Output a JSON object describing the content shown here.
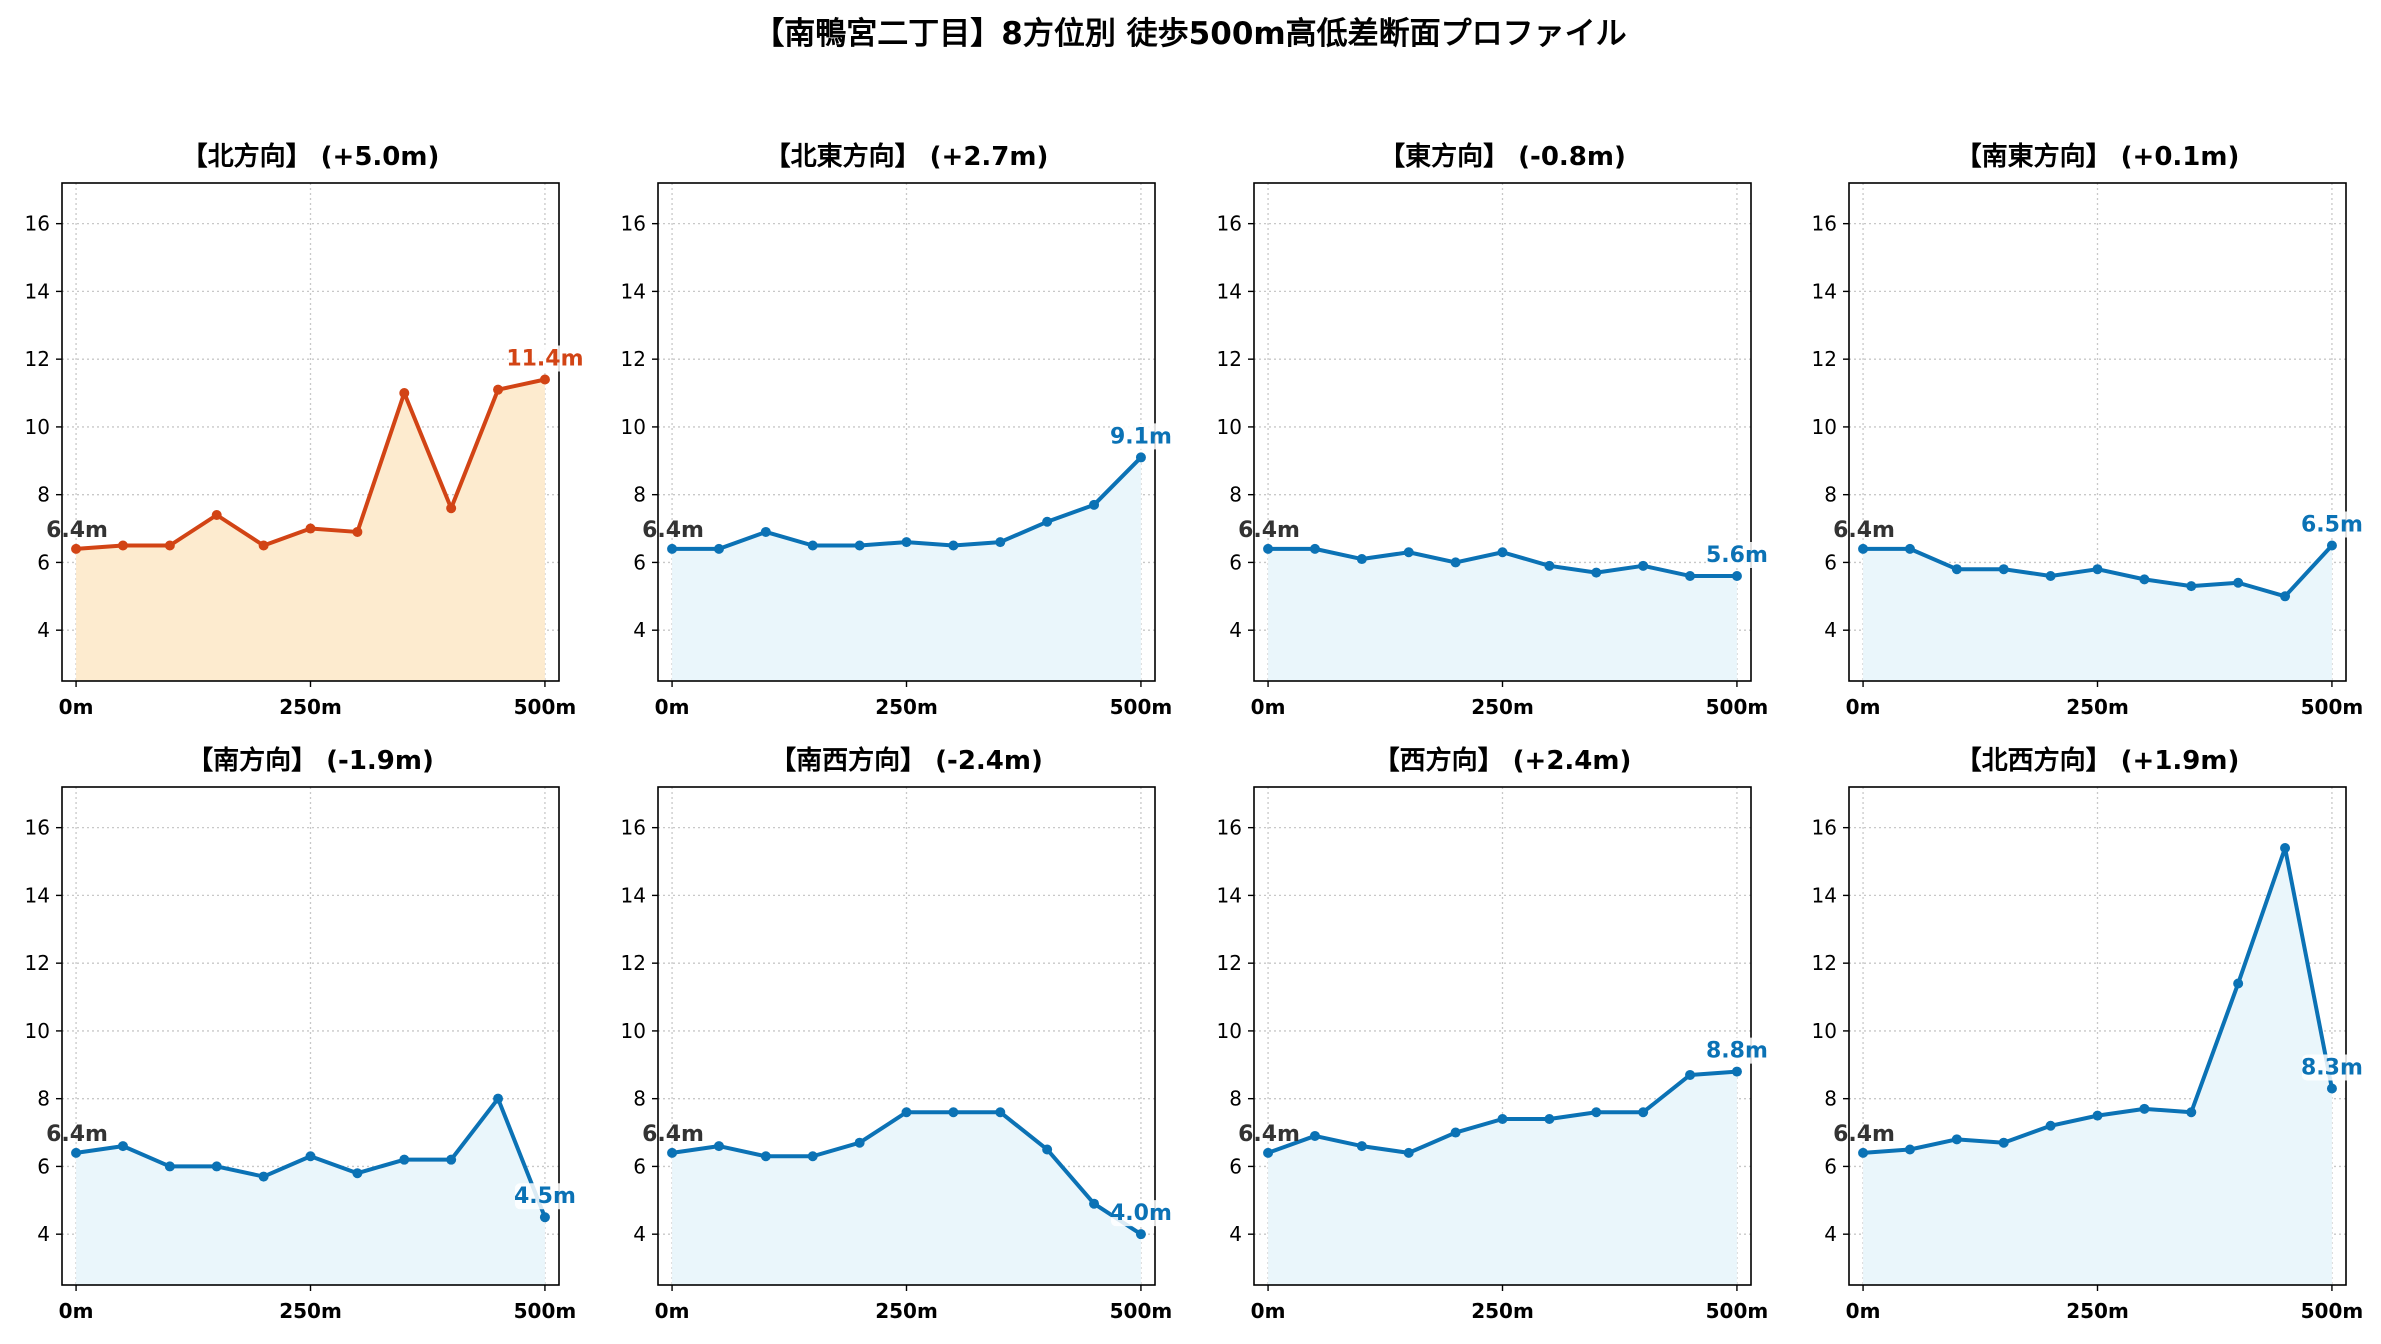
{
  "title": "【南鴨宮二丁目】8方位別 徒歩500m高低差断面プロファイル",
  "colors": {
    "up_line": "#d24415",
    "up_fill": "#fdebcf",
    "normal_line": "#0b72b5",
    "normal_fill": "#eaf6fb",
    "start_label": "#333333",
    "grid": "#c8c8c8"
  },
  "chart_data": [
    {
      "type": "area",
      "title": "【北方向】 (+5.0m)",
      "x": [
        0,
        50,
        100,
        150,
        200,
        250,
        300,
        350,
        400,
        450,
        500
      ],
      "values": [
        6.4,
        6.5,
        6.5,
        7.4,
        6.5,
        7.0,
        6.9,
        11.0,
        7.6,
        11.1,
        11.4
      ],
      "start_label": "6.4m",
      "end_label": "11.4m",
      "highlight": true,
      "ylim": [
        2.5,
        17.2
      ],
      "xlim": [
        -15,
        515
      ],
      "yticks": [
        4,
        6,
        8,
        10,
        12,
        14,
        16
      ],
      "xticks": [
        0,
        250,
        500
      ],
      "xtick_labels": [
        "0m",
        "250m",
        "500m"
      ],
      "grid": true
    },
    {
      "type": "area",
      "title": "【北東方向】 (+2.7m)",
      "x": [
        0,
        50,
        100,
        150,
        200,
        250,
        300,
        350,
        400,
        450,
        500
      ],
      "values": [
        6.4,
        6.4,
        6.9,
        6.5,
        6.5,
        6.6,
        6.5,
        6.6,
        7.2,
        7.7,
        9.1
      ],
      "start_label": "6.4m",
      "end_label": "9.1m",
      "highlight": false,
      "ylim": [
        2.5,
        17.2
      ],
      "xlim": [
        -15,
        515
      ],
      "yticks": [
        4,
        6,
        8,
        10,
        12,
        14,
        16
      ],
      "xticks": [
        0,
        250,
        500
      ],
      "xtick_labels": [
        "0m",
        "250m",
        "500m"
      ],
      "grid": true
    },
    {
      "type": "area",
      "title": "【東方向】 (-0.8m)",
      "x": [
        0,
        50,
        100,
        150,
        200,
        250,
        300,
        350,
        400,
        450,
        500
      ],
      "values": [
        6.4,
        6.4,
        6.1,
        6.3,
        6.0,
        6.3,
        5.9,
        5.7,
        5.9,
        5.6,
        5.6
      ],
      "start_label": "6.4m",
      "end_label": "5.6m",
      "highlight": false,
      "ylim": [
        2.5,
        17.2
      ],
      "xlim": [
        -15,
        515
      ],
      "yticks": [
        4,
        6,
        8,
        10,
        12,
        14,
        16
      ],
      "xticks": [
        0,
        250,
        500
      ],
      "xtick_labels": [
        "0m",
        "250m",
        "500m"
      ],
      "grid": true
    },
    {
      "type": "area",
      "title": "【南東方向】 (+0.1m)",
      "x": [
        0,
        50,
        100,
        150,
        200,
        250,
        300,
        350,
        400,
        450,
        500
      ],
      "values": [
        6.4,
        6.4,
        5.8,
        5.8,
        5.6,
        5.8,
        5.5,
        5.3,
        5.4,
        5.0,
        6.5
      ],
      "start_label": "6.4m",
      "end_label": "6.5m",
      "highlight": false,
      "ylim": [
        2.5,
        17.2
      ],
      "xlim": [
        -15,
        515
      ],
      "yticks": [
        4,
        6,
        8,
        10,
        12,
        14,
        16
      ],
      "xticks": [
        0,
        250,
        500
      ],
      "xtick_labels": [
        "0m",
        "250m",
        "500m"
      ],
      "grid": true
    },
    {
      "type": "area",
      "title": "【南方向】 (-1.9m)",
      "x": [
        0,
        50,
        100,
        150,
        200,
        250,
        300,
        350,
        400,
        450,
        500
      ],
      "values": [
        6.4,
        6.6,
        6.0,
        6.0,
        5.7,
        6.3,
        5.8,
        6.2,
        6.2,
        8.0,
        4.5
      ],
      "start_label": "6.4m",
      "end_label": "4.5m",
      "highlight": false,
      "ylim": [
        2.5,
        17.2
      ],
      "xlim": [
        -15,
        515
      ],
      "yticks": [
        4,
        6,
        8,
        10,
        12,
        14,
        16
      ],
      "xticks": [
        0,
        250,
        500
      ],
      "xtick_labels": [
        "0m",
        "250m",
        "500m"
      ],
      "grid": true
    },
    {
      "type": "area",
      "title": "【南西方向】 (-2.4m)",
      "x": [
        0,
        50,
        100,
        150,
        200,
        250,
        300,
        350,
        400,
        450,
        500
      ],
      "values": [
        6.4,
        6.6,
        6.3,
        6.3,
        6.7,
        7.6,
        7.6,
        7.6,
        6.5,
        4.9,
        4.0
      ],
      "start_label": "6.4m",
      "end_label": "4.0m",
      "highlight": false,
      "ylim": [
        2.5,
        17.2
      ],
      "xlim": [
        -15,
        515
      ],
      "yticks": [
        4,
        6,
        8,
        10,
        12,
        14,
        16
      ],
      "xticks": [
        0,
        250,
        500
      ],
      "xtick_labels": [
        "0m",
        "250m",
        "500m"
      ],
      "grid": true
    },
    {
      "type": "area",
      "title": "【西方向】 (+2.4m)",
      "x": [
        0,
        50,
        100,
        150,
        200,
        250,
        300,
        350,
        400,
        450,
        500
      ],
      "values": [
        6.4,
        6.9,
        6.6,
        6.4,
        7.0,
        7.4,
        7.4,
        7.6,
        7.6,
        8.7,
        8.8
      ],
      "start_label": "6.4m",
      "end_label": "8.8m",
      "highlight": false,
      "ylim": [
        2.5,
        17.2
      ],
      "xlim": [
        -15,
        515
      ],
      "yticks": [
        4,
        6,
        8,
        10,
        12,
        14,
        16
      ],
      "xticks": [
        0,
        250,
        500
      ],
      "xtick_labels": [
        "0m",
        "250m",
        "500m"
      ],
      "grid": true
    },
    {
      "type": "area",
      "title": "【北西方向】 (+1.9m)",
      "x": [
        0,
        50,
        100,
        150,
        200,
        250,
        300,
        350,
        400,
        450,
        500
      ],
      "values": [
        6.4,
        6.5,
        6.8,
        6.7,
        7.2,
        7.5,
        7.7,
        7.6,
        11.4,
        15.4,
        8.3
      ],
      "start_label": "6.4m",
      "end_label": "8.3m",
      "highlight": false,
      "ylim": [
        2.5,
        17.2
      ],
      "xlim": [
        -15,
        515
      ],
      "yticks": [
        4,
        6,
        8,
        10,
        12,
        14,
        16
      ],
      "xticks": [
        0,
        250,
        500
      ],
      "xtick_labels": [
        "0m",
        "250m",
        "500m"
      ],
      "grid": true
    }
  ]
}
